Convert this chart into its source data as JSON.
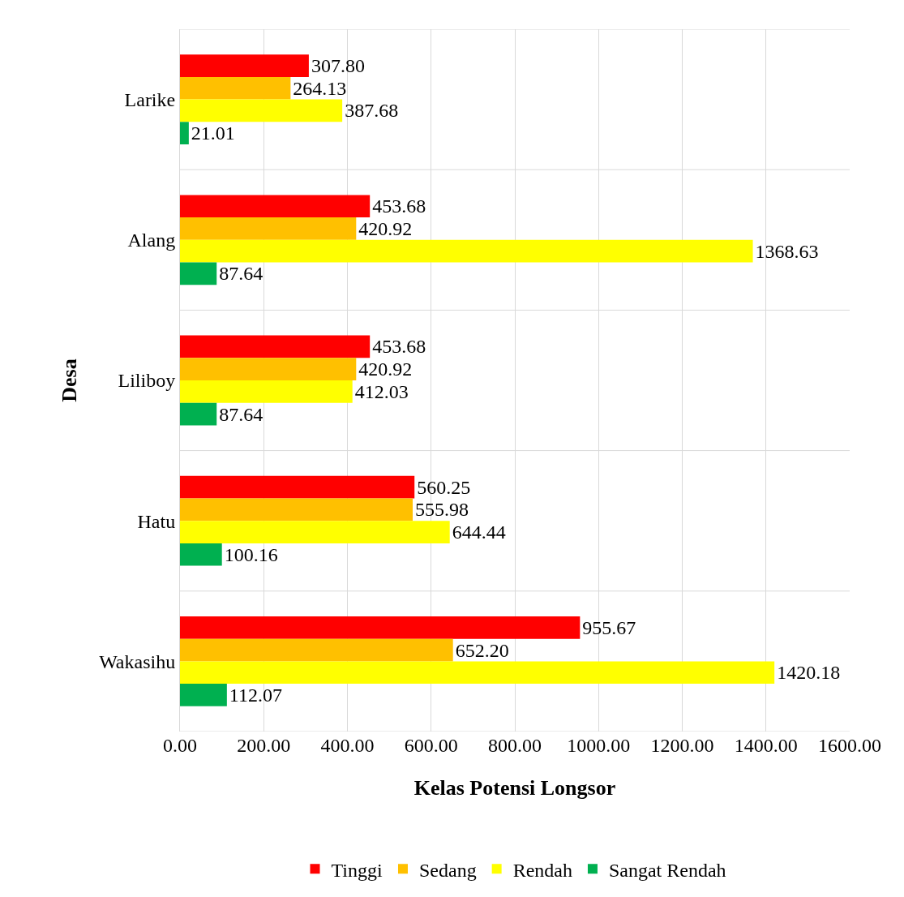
{
  "chart_data": {
    "type": "bar",
    "orientation": "horizontal",
    "xlabel": "Kelas Potensi Longsor",
    "ylabel": "Desa",
    "categories": [
      "Larike",
      "Alang",
      "Liliboy",
      "Hatu",
      "Wakasihu"
    ],
    "series": [
      {
        "name": "Tinggi",
        "color": "#ff0000",
        "values": [
          307.8,
          453.68,
          453.68,
          560.25,
          955.67
        ],
        "value_labels": [
          "307.80",
          "453.68",
          "453.68",
          "560.25",
          "955.67"
        ]
      },
      {
        "name": "Sedang",
        "color": "#ffc000",
        "values": [
          264.13,
          420.92,
          420.92,
          555.98,
          652.2
        ],
        "value_labels": [
          "264.13",
          "420.92",
          "420.92",
          "555.98",
          "652.20"
        ]
      },
      {
        "name": "Rendah",
        "color": "#ffff00",
        "values": [
          387.68,
          1368.63,
          412.03,
          644.44,
          1420.18
        ],
        "value_labels": [
          "387.68",
          "1368.63",
          "412.03",
          "644.44",
          "1420.18"
        ]
      },
      {
        "name": "Sangat Rendah",
        "color": "#00b050",
        "values": [
          21.01,
          87.64,
          87.64,
          100.16,
          112.07
        ],
        "value_labels": [
          "21.01",
          "87.64",
          "87.64",
          "100.16",
          "112.07"
        ]
      }
    ],
    "xlim": [
      0,
      1600
    ],
    "xticks": [
      {
        "value": 0,
        "label": "0.00"
      },
      {
        "value": 200,
        "label": "200.00"
      },
      {
        "value": 400,
        "label": "400.00"
      },
      {
        "value": 600,
        "label": "600.00"
      },
      {
        "value": 800,
        "label": "800.00"
      },
      {
        "value": 1000,
        "label": "1000.00"
      },
      {
        "value": 1200,
        "label": "1200.00"
      },
      {
        "value": 1400,
        "label": "1400.00"
      },
      {
        "value": 1600,
        "label": "1600.00"
      }
    ],
    "grid": true,
    "legend": "bottom"
  }
}
